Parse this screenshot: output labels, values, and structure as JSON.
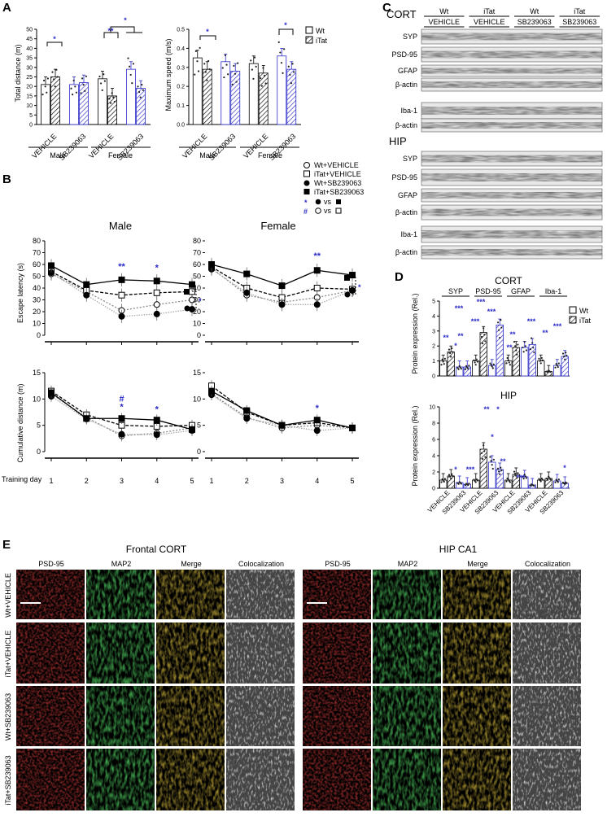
{
  "panels": {
    "a": "A",
    "b": "B",
    "c": "C",
    "d": "D",
    "e": "E"
  },
  "groups": {
    "vehicle": "VEHICLE",
    "sb": "SB239063",
    "male": "Male",
    "female": "Female"
  },
  "panel_a": {
    "ylabel_dist": "Total distance (m)",
    "ylabel_speed": "Maximum speed (m/s)",
    "legend": {
      "wt": "Wt",
      "itat": "iTat"
    },
    "dist_ticks": [
      "0",
      "5",
      "10",
      "15",
      "20",
      "25",
      "30",
      "35",
      "40",
      "45",
      "50"
    ],
    "speed_ticks": [
      "0.0",
      "0.1",
      "0.2",
      "0.3",
      "0.4",
      "0.5"
    ],
    "star": "*",
    "dstar": "**"
  },
  "panel_b": {
    "legend": [
      "Wt+VEHICLE",
      "iTat+VEHICLE",
      "Wt+SB239063",
      "iTat+SB239063"
    ],
    "legend_sig": [
      "vs",
      "vs"
    ],
    "sig_star": "*",
    "sig_hash": "#",
    "titles": {
      "male": "Male",
      "female": "Female"
    },
    "ylabel_latency": "Escape latency (s)",
    "ylabel_cum": "Cumulative distance (m)",
    "latency_ticks": [
      "0",
      "10",
      "20",
      "30",
      "40",
      "50",
      "60",
      "70",
      "80"
    ],
    "cum_ticks": [
      "0",
      "5",
      "10",
      "15"
    ],
    "xlabel": "Training day",
    "days": [
      "1",
      "2",
      "3",
      "4",
      "5"
    ]
  },
  "chart_data": [
    {
      "type": "line",
      "title": "Male",
      "ylabel": "Escape latency (s)",
      "xlabel": "Training day",
      "x": [
        1,
        2,
        3,
        4,
        5
      ],
      "ylim": [
        0,
        80
      ],
      "series": [
        {
          "name": "Wt+VEHICLE",
          "values": [
            52,
            37,
            21,
            26,
            30
          ]
        },
        {
          "name": "iTat+VEHICLE",
          "values": [
            54,
            38,
            34,
            36,
            37
          ]
        },
        {
          "name": "Wt+SB239063",
          "values": [
            53,
            34,
            16,
            18,
            22
          ]
        },
        {
          "name": "iTat+SB239063",
          "values": [
            59,
            43,
            47,
            46,
            43
          ]
        }
      ]
    },
    {
      "type": "line",
      "title": "Female",
      "ylabel": "Escape latency (s)",
      "xlabel": "Training day",
      "x": [
        1,
        2,
        3,
        4,
        5
      ],
      "ylim": [
        0,
        80
      ],
      "series": [
        {
          "name": "Wt+VEHICLE",
          "values": [
            57,
            34,
            28,
            32,
            38
          ]
        },
        {
          "name": "iTat+VEHICLE",
          "values": [
            58,
            40,
            32,
            40,
            39
          ]
        },
        {
          "name": "Wt+SB239063",
          "values": [
            56,
            36,
            26,
            26,
            38
          ]
        },
        {
          "name": "iTat+SB239063",
          "values": [
            60,
            52,
            42,
            55,
            51
          ]
        }
      ]
    },
    {
      "type": "line",
      "ylabel": "Cumulative distance (m)",
      "xlabel": "Training day",
      "x": [
        1,
        2,
        3,
        4,
        5
      ],
      "ylim": [
        0,
        15
      ],
      "series": [
        {
          "name": "Wt+VEHICLE",
          "values": [
            11,
            6.5,
            3,
            3.5,
            4.5
          ]
        },
        {
          "name": "iTat+VEHICLE",
          "values": [
            11.5,
            7,
            5,
            4.8,
            5
          ]
        },
        {
          "name": "Wt+SB239063",
          "values": [
            10.5,
            6.2,
            3.3,
            3.2,
            4
          ]
        },
        {
          "name": "iTat+SB239063",
          "values": [
            11.2,
            6.3,
            6.3,
            6,
            4.2
          ]
        }
      ]
    },
    {
      "type": "line",
      "ylabel": "Cumulative distance (m)",
      "xlabel": "Training day",
      "x": [
        1,
        2,
        3,
        4,
        5
      ],
      "ylim": [
        0,
        15
      ],
      "series": [
        {
          "name": "Wt+VEHICLE",
          "values": [
            11,
            6.5,
            4.5,
            5,
            4.5
          ]
        },
        {
          "name": "iTat+VEHICLE",
          "values": [
            12.5,
            7.5,
            5,
            5.5,
            4.5
          ]
        },
        {
          "name": "Wt+SB239063",
          "values": [
            10.8,
            6.3,
            5,
            4,
            4.5
          ]
        },
        {
          "name": "iTat+SB239063",
          "values": [
            11.5,
            7.8,
            5,
            6,
            4.5
          ]
        }
      ]
    },
    {
      "type": "bar",
      "ylabel": "Total distance (m)",
      "ylim": [
        0,
        50
      ],
      "categories": [
        "Male VEHICLE",
        "Male SB239063",
        "Female VEHICLE",
        "Female SB239063"
      ],
      "series": [
        {
          "name": "Wt",
          "values": [
            21,
            21,
            24,
            29
          ]
        },
        {
          "name": "iTat",
          "values": [
            25,
            22,
            15,
            19
          ]
        }
      ]
    },
    {
      "type": "bar",
      "ylabel": "Maximum speed (m/s)",
      "ylim": [
        0,
        0.5
      ],
      "categories": [
        "Male VEHICLE",
        "Male SB239063",
        "Female VEHICLE",
        "Female SB239063"
      ],
      "series": [
        {
          "name": "Wt",
          "values": [
            0.35,
            0.33,
            0.32,
            0.36
          ]
        },
        {
          "name": "iTat",
          "values": [
            0.29,
            0.28,
            0.27,
            0.29
          ]
        }
      ]
    },
    {
      "type": "bar",
      "title": "CORT",
      "ylabel": "Protein expression (Rel.)",
      "ylim": [
        0,
        5
      ],
      "categories": [
        "SYP VEHICLE",
        "SYP SB239063",
        "PSD-95 VEHICLE",
        "PSD-95 SB239063",
        "GFAP VEHICLE",
        "GFAP SB239063",
        "Iba-1 VEHICLE",
        "Iba-1 SB239063"
      ],
      "series": [
        {
          "name": "Wt",
          "values": [
            1,
            0.6,
            1,
            0.7,
            1,
            1.9,
            1,
            0.7
          ]
        },
        {
          "name": "iTat",
          "values": [
            1.6,
            0.6,
            2.9,
            3.4,
            1.9,
            2.1,
            0.3,
            1.3
          ]
        }
      ]
    },
    {
      "type": "bar",
      "title": "HIP",
      "ylabel": "Protein expression (Rel.)",
      "ylim": [
        0,
        10
      ],
      "categories": [
        "SYP VEHICLE",
        "SYP SB239063",
        "PSD-95 VEHICLE",
        "PSD-95 SB239063",
        "GFAP VEHICLE",
        "GFAP SB239063",
        "Iba-1 VEHICLE",
        "Iba-1 SB239063"
      ],
      "series": [
        {
          "name": "Wt",
          "values": [
            1,
            0.7,
            1,
            3.2,
            1,
            1.4,
            1,
            0.9
          ]
        },
        {
          "name": "iTat",
          "values": [
            1.5,
            0.5,
            4.8,
            2.3,
            1.7,
            0.4,
            1.2,
            0.6
          ]
        }
      ]
    }
  ],
  "panel_c": {
    "cort": "CORT",
    "hip": "HIP",
    "col_groups": [
      "Wt",
      "iTat",
      "Wt",
      "iTat"
    ],
    "col_sub": [
      "VEHICLE",
      "VEHICLE",
      "SB239063",
      "SB239063"
    ],
    "cort_rows": [
      "SYP",
      "PSD-95",
      "GFAP",
      "β-actin",
      "Iba-1",
      "β-actin"
    ],
    "hip_rows": [
      "SYP",
      "PSD-95",
      "GFAP",
      "β-actin",
      "Iba-1",
      "β-actin"
    ]
  },
  "panel_d": {
    "cort": "CORT",
    "hip": "HIP",
    "ylabel": "Protein expression (Rel.)",
    "markers": [
      "SYP",
      "PSD-95",
      "GFAP",
      "Iba-1"
    ],
    "legend": {
      "wt": "Wt",
      "itat": "iTat"
    },
    "cort_ticks": [
      "0",
      "1",
      "2",
      "3",
      "4",
      "5"
    ],
    "hip_ticks": [
      "0",
      "2",
      "4",
      "6",
      "8",
      "10"
    ],
    "xcats": [
      "VEHICLE",
      "SB239063",
      "VEHICLE",
      "SB239063",
      "VEHICLE",
      "SB239063",
      "VEHICLE",
      "SB239063"
    ]
  },
  "panel_e": {
    "left_title": "Frontal CORT",
    "right_title": "HIP CA1",
    "cols": [
      "PSD-95",
      "MAP2",
      "Merge",
      "Colocalization"
    ],
    "rows": [
      "Wt+VEHICLE",
      "iTat+VEHICLE",
      "Wt+SB239063",
      "iTat+SB239063"
    ]
  }
}
